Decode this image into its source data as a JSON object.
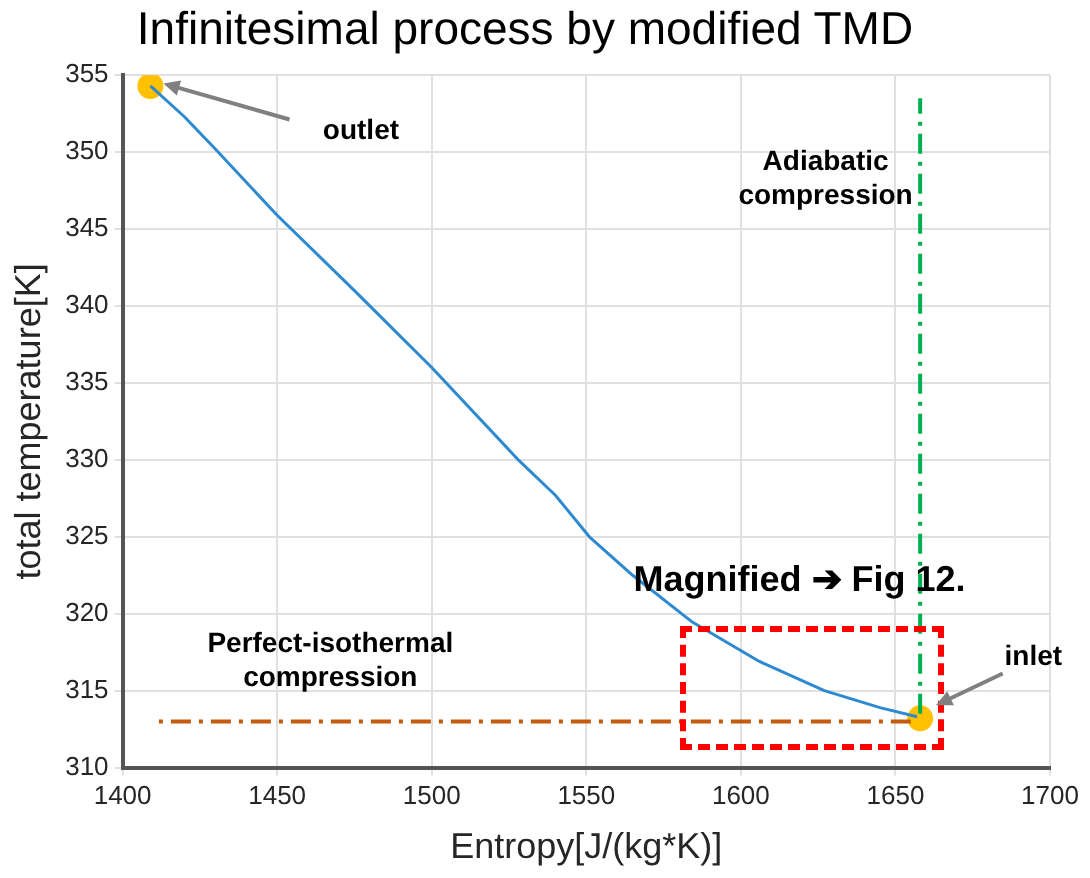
{
  "chart_data": {
    "type": "line",
    "title": "Infinitesimal process by modified TMD",
    "xlabel": "Entropy[J/(kg*K)]",
    "ylabel": "total temperature[K]",
    "xlim": [
      1400,
      1700
    ],
    "xticks": [
      1400,
      1450,
      1500,
      1550,
      1600,
      1650,
      1700
    ],
    "ylim": [
      310,
      355
    ],
    "yticks": [
      310,
      315,
      320,
      325,
      330,
      335,
      340,
      345,
      350,
      355
    ],
    "grid": true,
    "legend": false,
    "series": [
      {
        "type": "line",
        "color": "#c55a11",
        "marker": "none",
        "line_style": "dashed",
        "x": [
          1655,
          1410
        ],
        "values": [
          313,
          313
        ]
      },
      {
        "type": "line",
        "color": "#00b050",
        "marker": "none",
        "line_style": "dashed",
        "x": [
          1658,
          1658
        ],
        "values": [
          313.5,
          353.5
        ]
      },
      {
        "type": "line",
        "color": "#2e8ad0",
        "marker": "none",
        "x": [
          1409,
          1420,
          1430,
          1450,
          1475,
          1500,
          1528,
          1540,
          1551,
          1565,
          1584,
          1606,
          1627,
          1645,
          1657
        ],
        "values": [
          354.3,
          352.3,
          350.2,
          345.9,
          341,
          336,
          330,
          327.7,
          325,
          322.5,
          319.5,
          316.9,
          315,
          313.9,
          313.3
        ]
      },
      {
        "type": "scatter",
        "color": "#ffc000",
        "marker": "circle",
        "x": [
          1409,
          1658
        ],
        "values": [
          354.3,
          313.2
        ]
      }
    ],
    "annotations": [
      "outlet",
      "inlet",
      "Adiabatic\ncompression",
      "Perfect-isothermal\ncompression",
      "Magnified ➔ Fig 12."
    ]
  }
}
